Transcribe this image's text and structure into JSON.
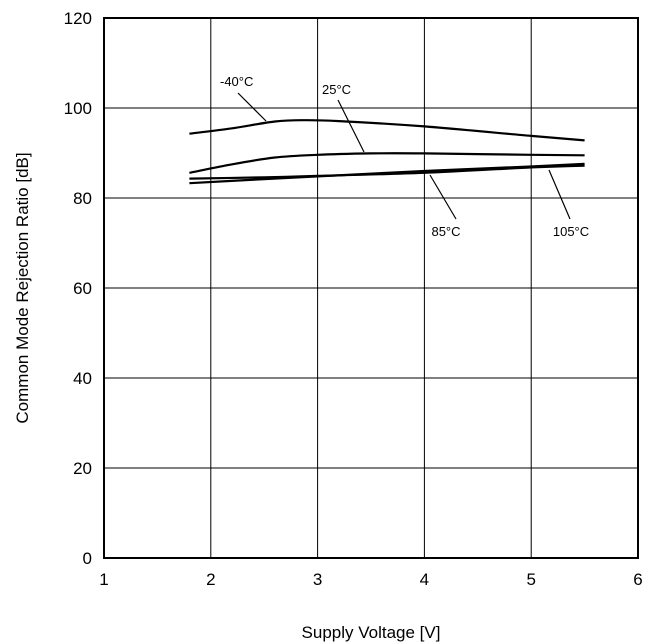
{
  "chart_data": {
    "type": "line",
    "title": "",
    "xlabel": "Supply Voltage [V]",
    "ylabel": "Common Mode Rejection Ratio [dB]",
    "xlim": [
      1,
      6
    ],
    "ylim": [
      0,
      120
    ],
    "xticks": [
      "1",
      "2",
      "3",
      "4",
      "5",
      "6"
    ],
    "yticks": [
      "0",
      "20",
      "40",
      "60",
      "80",
      "100",
      "120"
    ],
    "grid": true,
    "legend": "none",
    "series": [
      {
        "name": "-40°C",
        "x": [
          1.8,
          2.2,
          2.6,
          2.85,
          3.2,
          4.0,
          5.0,
          5.5
        ],
        "y": [
          94.3,
          95.5,
          97.0,
          97.3,
          97.1,
          95.9,
          93.8,
          92.8
        ]
      },
      {
        "name": "25°C",
        "x": [
          1.8,
          2.2,
          2.6,
          3.0,
          3.5,
          4.0,
          5.0,
          5.5
        ],
        "y": [
          85.6,
          87.5,
          89.0,
          89.6,
          89.9,
          89.9,
          89.6,
          89.5
        ]
      },
      {
        "name": "85°C",
        "x": [
          1.8,
          2.5,
          3.0,
          4.0,
          5.0,
          5.5
        ],
        "y": [
          84.3,
          84.6,
          84.9,
          85.6,
          86.8,
          87.2
        ]
      },
      {
        "name": "105°C",
        "x": [
          1.8,
          2.5,
          3.0,
          4.0,
          5.0,
          5.5
        ],
        "y": [
          83.3,
          84.2,
          84.8,
          86.0,
          87.0,
          87.6
        ]
      }
    ]
  }
}
